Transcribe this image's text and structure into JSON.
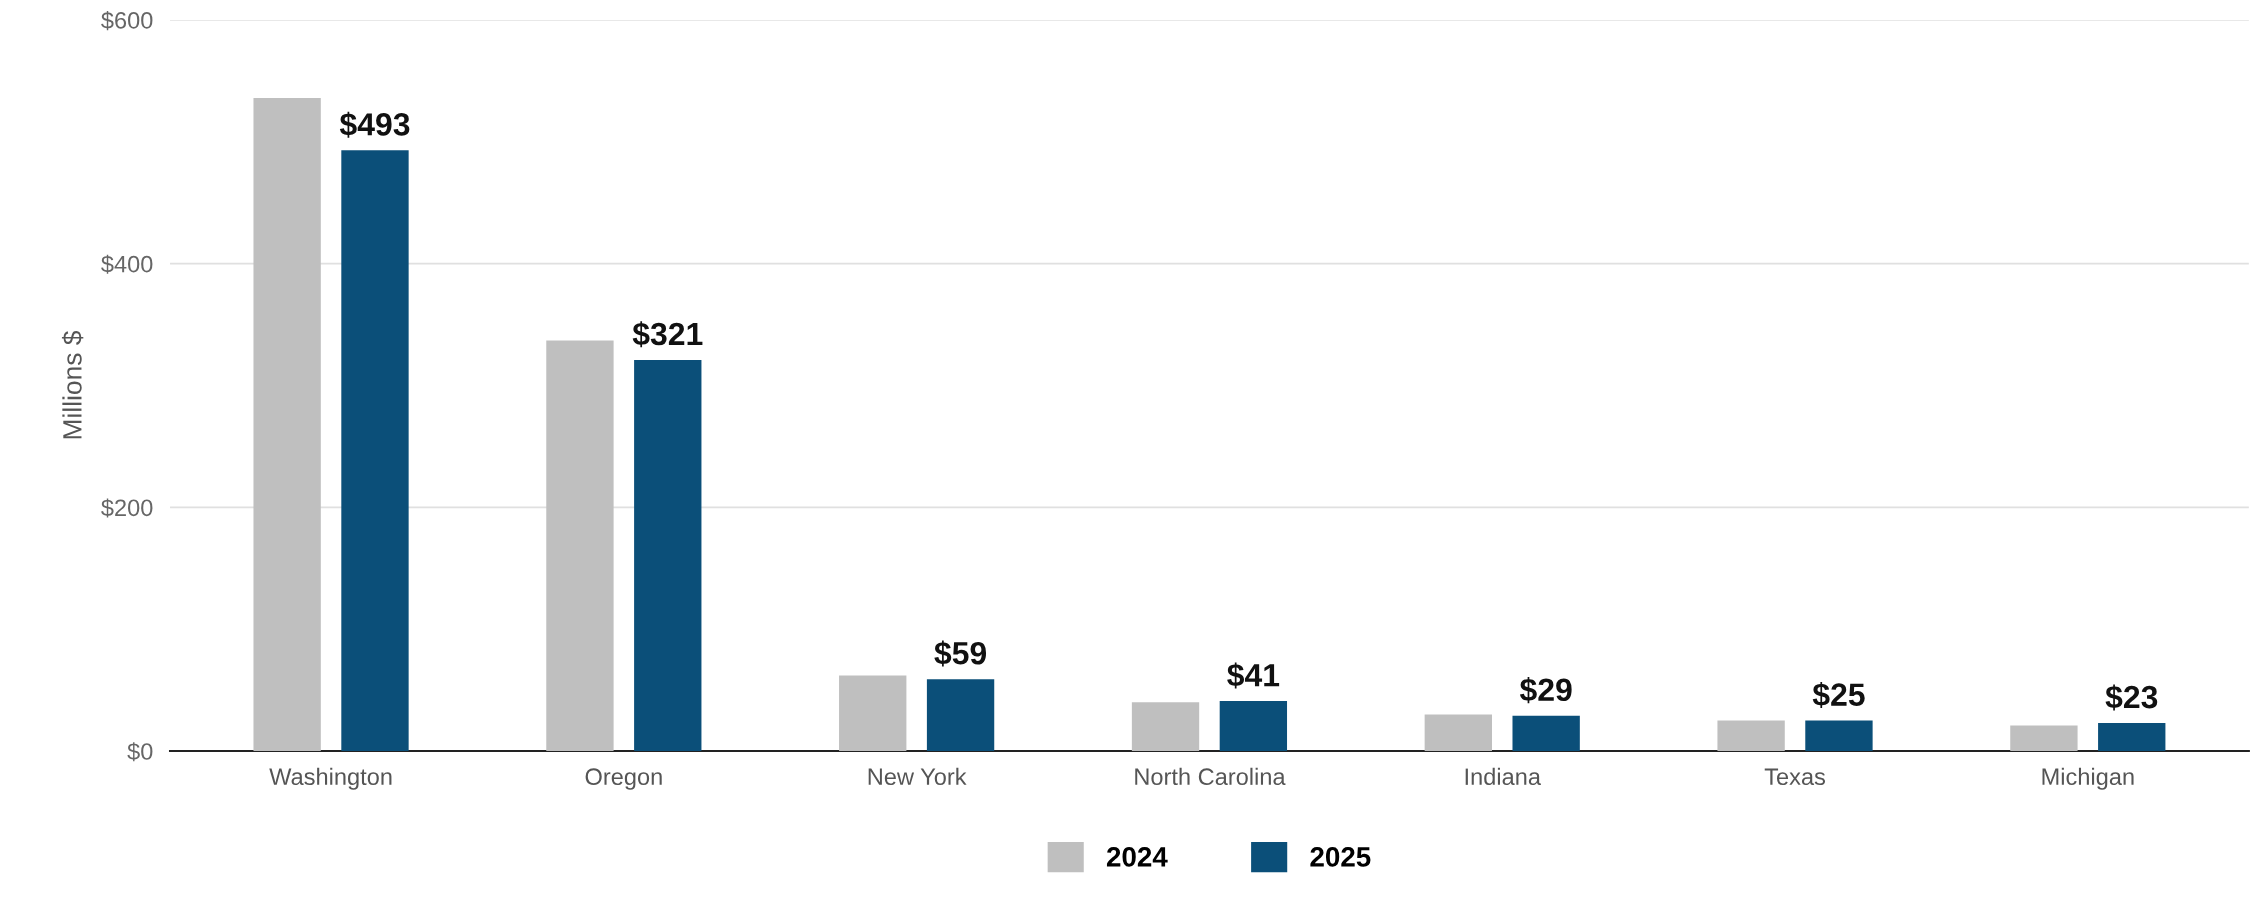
{
  "chart_data": {
    "type": "bar",
    "ylabel": "Millions $",
    "categories": [
      "Washington",
      "Oregon",
      "New York",
      "North Carolina",
      "Indiana",
      "Texas",
      "Michigan"
    ],
    "series": [
      {
        "name": "2024",
        "color": "#bfbfbf",
        "values": [
          536,
          337,
          62,
          40,
          30,
          25,
          21
        ]
      },
      {
        "name": "2025",
        "color": "#0b4f79",
        "values": [
          493,
          321,
          59,
          41,
          29,
          25,
          23
        ],
        "value_labels": [
          "$493",
          "$321",
          "$59",
          "$41",
          "$29",
          "$25",
          "$23"
        ]
      }
    ],
    "ylim": [
      0,
      600
    ],
    "yticks": [
      {
        "value": 0,
        "label": "$0"
      },
      {
        "value": 200,
        "label": "$200"
      },
      {
        "value": 400,
        "label": "$400"
      },
      {
        "value": 600,
        "label": "$600"
      }
    ],
    "grid": "y",
    "legend": "bottom"
  }
}
